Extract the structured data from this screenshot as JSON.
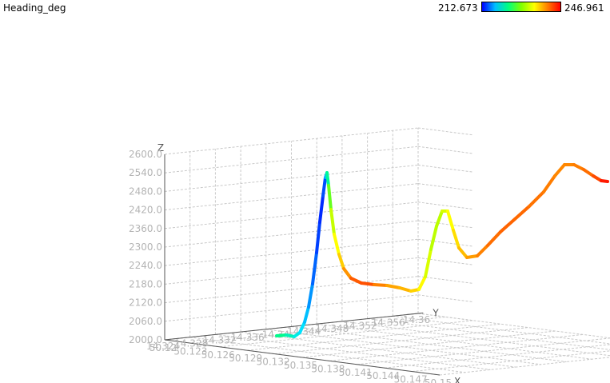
{
  "title": "Heading_deg",
  "colorbar": {
    "min": "212.673",
    "max": "246.961"
  },
  "chart_data": {
    "type": "line",
    "subtype": "3d-trajectory",
    "color_variable": "Heading_deg",
    "color_range": [
      212.673,
      246.961
    ],
    "axes": {
      "x": {
        "name": "X",
        "ticks": [
          "50.12",
          "50.123",
          "50.126",
          "50.129",
          "50.132",
          "50.135",
          "50.138",
          "50.141",
          "50.144",
          "50.147",
          "50.15"
        ]
      },
      "y": {
        "name": "Y",
        "ticks": [
          "14.324",
          "14.328",
          "14.332",
          "14.336",
          "14.34",
          "14.344",
          "14.348",
          "14.352",
          "14.356",
          "14.36"
        ]
      },
      "z": {
        "name": "Z",
        "range": [
          2000,
          2600
        ],
        "ticks": [
          "2000.0",
          "2060.0",
          "2120.0",
          "2180.0",
          "2240.0",
          "2300.0",
          "2360.0",
          "2420.0",
          "2480.0",
          "2540.0",
          "2600.0"
        ]
      }
    },
    "x_tick_labels_drawn": [
      "50.12",
      "50.123",
      "50.126",
      "50.129",
      "50.132",
      "50.135",
      "50.138",
      "50.141",
      "50.144",
      "50.147",
      "50.15"
    ],
    "y_tick_labels_drawn": [
      "14.324",
      "14.328",
      "14.332",
      "14.336",
      "14.34",
      "14.344",
      "14.348",
      "14.352",
      "14.356",
      "14.36"
    ],
    "grid": true
  }
}
